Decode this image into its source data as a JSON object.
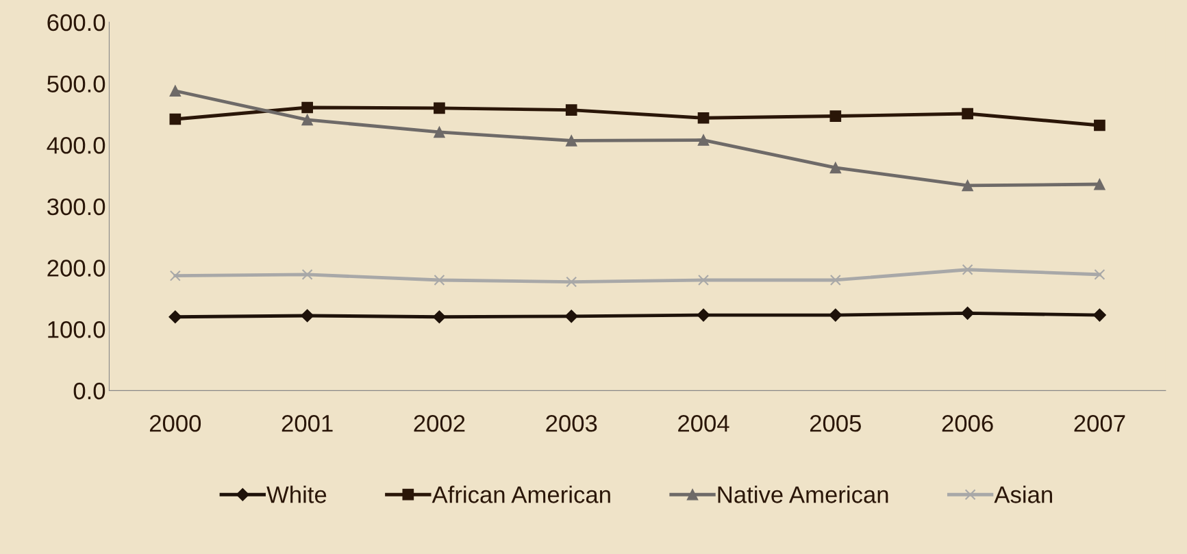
{
  "chart_data": {
    "type": "line",
    "categories": [
      "2000",
      "2001",
      "2002",
      "2003",
      "2004",
      "2005",
      "2006",
      "2007"
    ],
    "series": [
      {
        "name": "White",
        "color": "#1e120a",
        "marker": "diamond",
        "values": [
          120,
          122,
          120,
          121,
          123,
          123,
          126,
          123
        ]
      },
      {
        "name": "African American",
        "color": "#2a1608",
        "marker": "square",
        "values": [
          442,
          461,
          460,
          457,
          444,
          447,
          451,
          432
        ]
      },
      {
        "name": "Native American",
        "color": "#6e6a68",
        "marker": "triangle",
        "values": [
          488,
          441,
          421,
          407,
          408,
          363,
          334,
          336
        ]
      },
      {
        "name": "Asian",
        "color": "#a8a8a8",
        "marker": "cross",
        "values": [
          187,
          189,
          180,
          177,
          180,
          180,
          197,
          189
        ]
      }
    ],
    "ylim": [
      0,
      600
    ],
    "yticks": [
      {
        "value": 0,
        "label": "0.0"
      },
      {
        "value": 100,
        "label": "100.0"
      },
      {
        "value": 200,
        "label": "200.0"
      },
      {
        "value": 300,
        "label": "300.0"
      },
      {
        "value": 400,
        "label": "400.0"
      },
      {
        "value": 500,
        "label": "500.0"
      },
      {
        "value": 600,
        "label": "600.0"
      }
    ],
    "grid": false,
    "legend": "bottom"
  }
}
